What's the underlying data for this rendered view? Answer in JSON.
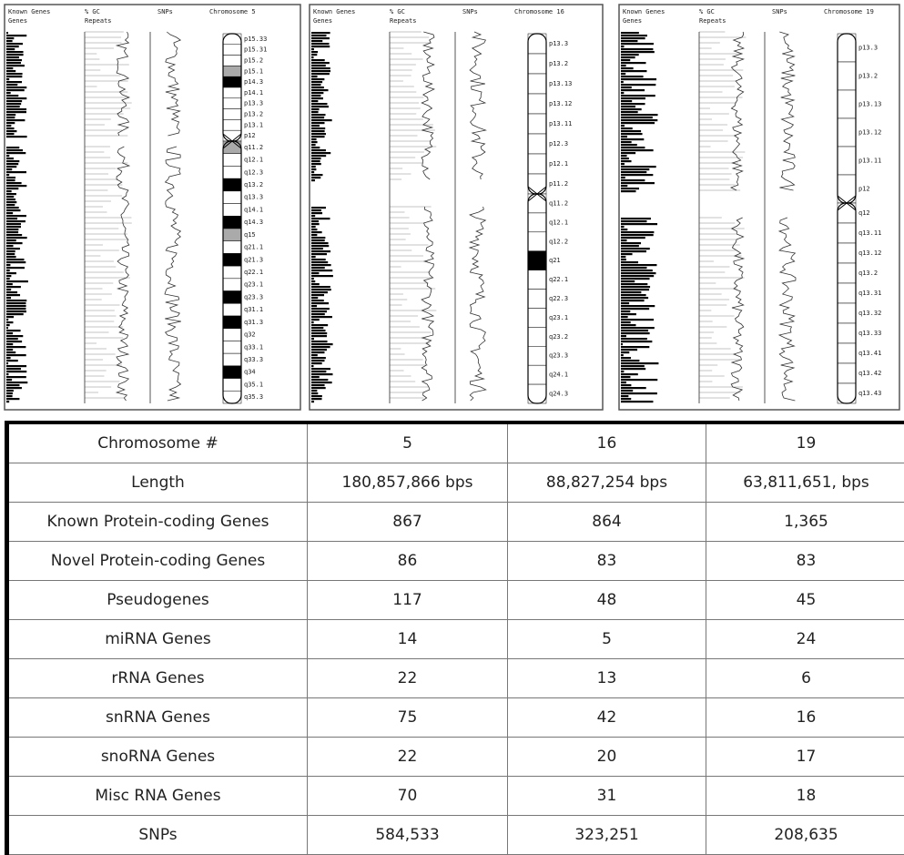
{
  "panels": [
    {
      "known_genes": "Known Genes",
      "genes": "Genes",
      "gc": "% GC",
      "repeats": "Repeats",
      "snps": "SNPs",
      "title": "Chromosome 5",
      "bands": [
        "p15.33",
        "p15.31",
        "p15.2",
        "p15.1",
        "p14.3",
        "p14.1",
        "p13.3",
        "p13.2",
        "p13.1",
        "p12",
        "q11.2",
        "q12.1",
        "q12.3",
        "q13.2",
        "q13.3",
        "q14.1",
        "q14.3",
        "q15",
        "q21.1",
        "q21.3",
        "q22.1",
        "q23.1",
        "q23.3",
        "q31.1",
        "q31.3",
        "q32",
        "q33.1",
        "q33.3",
        "q34",
        "q35.1",
        "q35.3"
      ]
    },
    {
      "known_genes": "Known Genes",
      "genes": "Genes",
      "gc": "% GC",
      "repeats": "Repeats",
      "snps": "SNPs",
      "title": "Chromosome 16",
      "bands": [
        "p13.3",
        "p13.2",
        "p13.13",
        "p13.12",
        "p13.11",
        "p12.3",
        "p12.1",
        "p11.2",
        "q11.2",
        "q12.1",
        "q12.2",
        "q21",
        "q22.1",
        "q22.3",
        "q23.1",
        "q23.2",
        "q23.3",
        "q24.1",
        "q24.3"
      ]
    },
    {
      "known_genes": "Known Genes",
      "genes": "Genes",
      "gc": "% GC",
      "repeats": "Repeats",
      "snps": "SNPs",
      "title": "Chromosome 19",
      "bands": [
        "p13.3",
        "p13.2",
        "p13.13",
        "p13.12",
        "p13.11",
        "p12",
        "q12",
        "q13.11",
        "q13.12",
        "q13.2",
        "q13.31",
        "q13.32",
        "q13.33",
        "q13.41",
        "q13.42",
        "q13.43"
      ]
    }
  ],
  "table": {
    "rows": [
      [
        "Chromosome #",
        "5",
        "16",
        "19"
      ],
      [
        "Length",
        "180,857,866 bps",
        "88,827,254 bps",
        "63,811,651, bps"
      ],
      [
        "Known Protein-coding Genes",
        "867",
        "864",
        "1,365"
      ],
      [
        "Novel Protein-coding Genes",
        "86",
        "83",
        "83"
      ],
      [
        "Pseudogenes",
        "117",
        "48",
        "45"
      ],
      [
        "miRNA Genes",
        "14",
        "5",
        "24"
      ],
      [
        "rRNA Genes",
        "22",
        "13",
        "6"
      ],
      [
        "snRNA Genes",
        "75",
        "42",
        "16"
      ],
      [
        "snoRNA Genes",
        "22",
        "20",
        "17"
      ],
      [
        "Misc RNA Genes",
        "70",
        "31",
        "18"
      ],
      [
        "SNPs",
        "584,533",
        "323,251",
        "208,635"
      ]
    ]
  }
}
